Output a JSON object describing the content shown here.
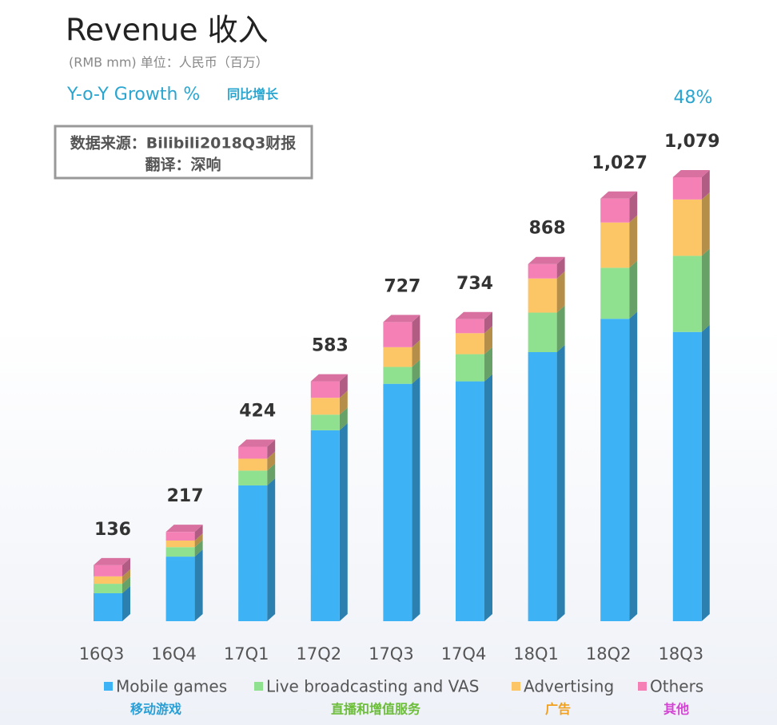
{
  "chart_data": {
    "type": "stacked-bar-3d",
    "title": "Revenue 收入",
    "subtitle": "(RMB mm) 单位：人民币（百万）",
    "growth_label": "Y-o-Y Growth %",
    "growth_label_cn": "同比增长",
    "growth_value": "48%",
    "source": "数据来源：Bilibili2018Q3财报",
    "translator": "翻译：深响",
    "categories": [
      "16Q3",
      "16Q4",
      "17Q1",
      "17Q2",
      "17Q3",
      "17Q4",
      "18Q1",
      "18Q2",
      "18Q3"
    ],
    "totals": [
      136,
      217,
      424,
      583,
      727,
      734,
      868,
      1027,
      1079
    ],
    "total_labels": [
      "136",
      "217",
      "424",
      "583",
      "727",
      "734",
      "868",
      "1,027",
      "1,079"
    ],
    "series": [
      {
        "name": "Mobile games",
        "name_cn": "移动游戏",
        "color": "#3db2f4",
        "label_color": "#2a9fd6",
        "values": [
          68,
          157,
          330,
          464,
          577,
          583,
          654,
          735,
          703
        ]
      },
      {
        "name": "Live broadcasting and VAS",
        "name_cn": "直播和增值服务",
        "color": "#8fe08f",
        "label_color": "#6cbd3a",
        "values": [
          23,
          23,
          36,
          38,
          41,
          66,
          96,
          124,
          185
        ]
      },
      {
        "name": "Advertising",
        "name_cn": "广告",
        "color": "#fcc566",
        "label_color": "#f0a01e",
        "values": [
          18,
          16,
          29,
          41,
          48,
          51,
          83,
          110,
          137
        ]
      },
      {
        "name": "Others",
        "name_cn": "其他",
        "color": "#f580b6",
        "label_color": "#d444d4",
        "values": [
          27,
          21,
          29,
          40,
          61,
          34,
          35,
          58,
          54
        ]
      }
    ]
  }
}
